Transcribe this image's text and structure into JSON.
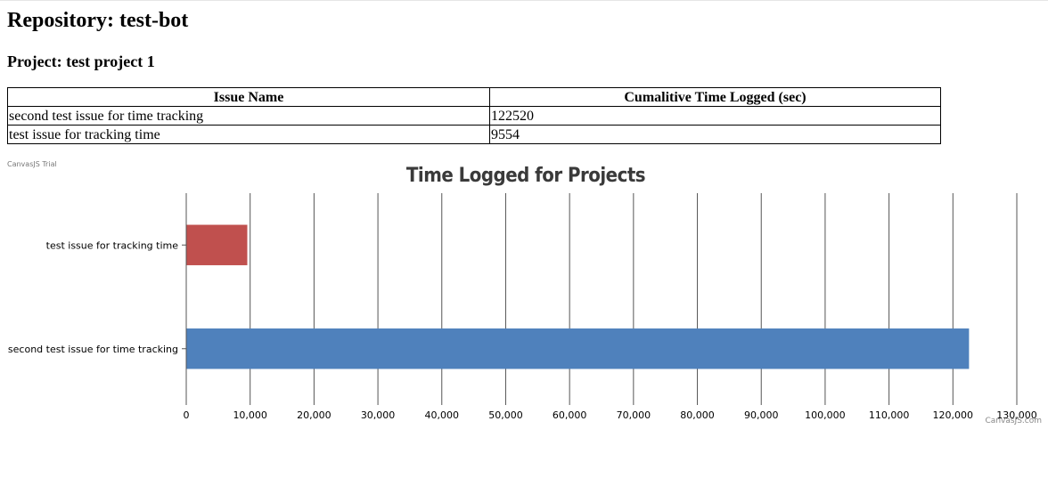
{
  "header": {
    "repository_title": "Repository: test-bot",
    "project_title": "Project: test project 1"
  },
  "table": {
    "columns": [
      "Issue Name",
      "Cumalitive Time Logged (sec)"
    ],
    "rows": [
      {
        "name": "second test issue for time tracking",
        "time": "122520"
      },
      {
        "name": "test issue for tracking time",
        "time": "9554"
      }
    ]
  },
  "watermark": {
    "trial": "CanvasJS Trial",
    "credit": "CanvasJS.com"
  },
  "chart_data": {
    "type": "bar",
    "orientation": "horizontal",
    "title": "Time Logged for Projects",
    "categories": [
      "second test issue for time tracking",
      "test issue for tracking time"
    ],
    "values": [
      122520,
      9554
    ],
    "colors": [
      "#4F81BC",
      "#C0504E"
    ],
    "xlim": [
      0,
      130000
    ],
    "ticks": [
      0,
      10000,
      20000,
      30000,
      40000,
      50000,
      60000,
      70000,
      80000,
      90000,
      100000,
      110000,
      120000,
      130000
    ],
    "tick_labels": [
      "0",
      "10,000",
      "20,000",
      "30,000",
      "40,000",
      "50,000",
      "60,000",
      "70,000",
      "80,000",
      "90,000",
      "100,000",
      "110,000",
      "120,000",
      "130,000"
    ],
    "grid": true,
    "xlabel": "",
    "ylabel": ""
  }
}
